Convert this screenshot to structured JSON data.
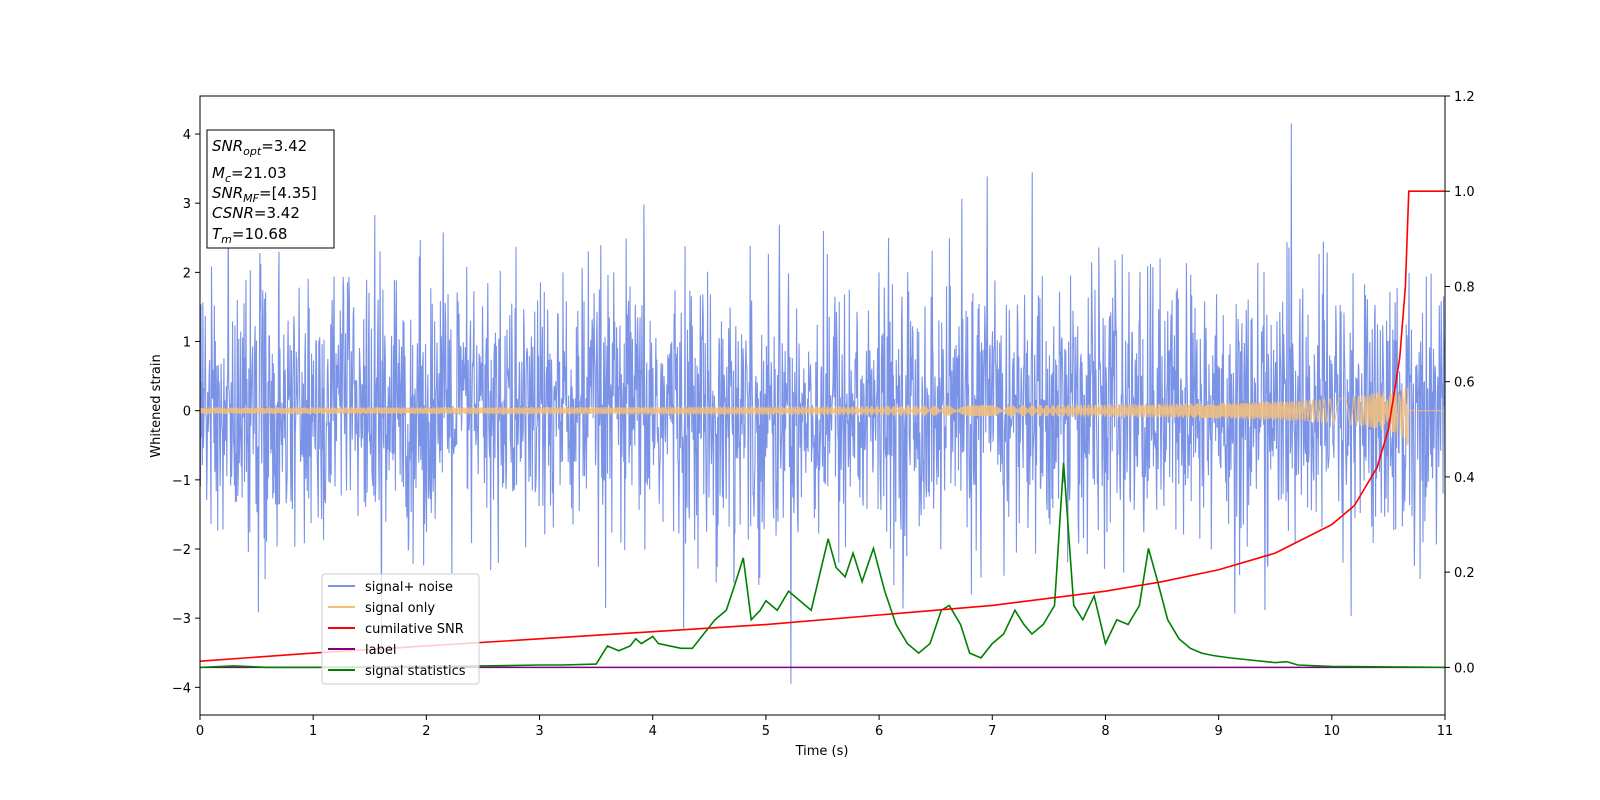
{
  "chart_data": {
    "type": "line",
    "xlabel": "Time (s)",
    "ylabel": "Whitened strain",
    "xlim": [
      0,
      11
    ],
    "ylim_left": [
      -4.4,
      4.55
    ],
    "ylim_right": [
      -0.1,
      1.2
    ],
    "x_ticks": [
      "0",
      "1",
      "2",
      "3",
      "4",
      "5",
      "6",
      "7",
      "8",
      "9",
      "10",
      "11"
    ],
    "y_ticks_left": [
      "4",
      "3",
      "2",
      "1",
      "0",
      "−1",
      "−2",
      "−3",
      "−4"
    ],
    "y_ticks_right": [
      "1.2",
      "1.0",
      "0.8",
      "0.6",
      "0.4",
      "0.2",
      "0.0"
    ],
    "grid": false,
    "legend_position": "lower-left",
    "info_box": {
      "snr_opt": {
        "label": "SNR",
        "sub": "opt",
        "value": "=3.42"
      },
      "mc": {
        "label": "M",
        "sub": "c",
        "value": "=21.03"
      },
      "snr_mf": {
        "label": "SNR",
        "sub": "MF",
        "value": "=[4.35]"
      },
      "csnr": {
        "label": "CSNR",
        "value": "=3.42"
      },
      "tm": {
        "label": "T",
        "sub": "m",
        "value": "=10.68"
      }
    },
    "series": [
      {
        "name": "signal+ noise",
        "color": "#7b93e6",
        "axis": "left",
        "description_values": {
          "std": 1.0,
          "max": 4.15,
          "min": -3.95
        }
      },
      {
        "name": "signal only",
        "color": "#f5c07a",
        "axis": "left",
        "chirp_merger_time": 10.68,
        "peak_amplitude": 0.6
      },
      {
        "name": "cumilative SNR",
        "color": "#ff0000",
        "axis": "right",
        "x": [
          0,
          1,
          2,
          3,
          4,
          5,
          6,
          7,
          7.5,
          8,
          8.5,
          9,
          9.5,
          10,
          10.2,
          10.4,
          10.5,
          10.6,
          10.65,
          10.68,
          11
        ],
        "values": [
          0.013,
          0.03,
          0.045,
          0.06,
          0.075,
          0.09,
          0.11,
          0.13,
          0.145,
          0.16,
          0.18,
          0.205,
          0.24,
          0.3,
          0.34,
          0.42,
          0.5,
          0.65,
          0.8,
          1.0,
          1.0
        ]
      },
      {
        "name": "label",
        "color": "#800080",
        "axis": "right",
        "x": [
          0,
          11
        ],
        "values": [
          0.0,
          0.0
        ]
      },
      {
        "name": "signal statistics",
        "color": "#008000",
        "axis": "right",
        "x": [
          0,
          0.3,
          0.6,
          1.0,
          1.5,
          2.0,
          2.5,
          3.0,
          3.2,
          3.5,
          3.6,
          3.7,
          3.8,
          3.85,
          3.9,
          4.0,
          4.05,
          4.15,
          4.25,
          4.35,
          4.45,
          4.55,
          4.65,
          4.72,
          4.8,
          4.87,
          4.95,
          5.0,
          5.1,
          5.2,
          5.3,
          5.4,
          5.55,
          5.62,
          5.7,
          5.77,
          5.85,
          5.95,
          6.05,
          6.15,
          6.25,
          6.35,
          6.45,
          6.55,
          6.62,
          6.72,
          6.8,
          6.9,
          7.0,
          7.1,
          7.2,
          7.28,
          7.35,
          7.45,
          7.55,
          7.63,
          7.72,
          7.8,
          7.9,
          8.0,
          8.1,
          8.2,
          8.3,
          8.38,
          8.45,
          8.55,
          8.65,
          8.75,
          8.85,
          8.95,
          9.1,
          9.3,
          9.5,
          9.6,
          9.7,
          10.0,
          10.5,
          11.0
        ],
        "values": [
          0.0,
          0.003,
          0.0,
          0.0,
          0.001,
          0.002,
          0.003,
          0.005,
          0.005,
          0.007,
          0.045,
          0.035,
          0.045,
          0.06,
          0.05,
          0.065,
          0.05,
          0.045,
          0.04,
          0.04,
          0.07,
          0.1,
          0.12,
          0.17,
          0.23,
          0.1,
          0.12,
          0.14,
          0.12,
          0.16,
          0.14,
          0.12,
          0.27,
          0.21,
          0.19,
          0.24,
          0.18,
          0.25,
          0.16,
          0.09,
          0.05,
          0.03,
          0.05,
          0.12,
          0.13,
          0.09,
          0.03,
          0.02,
          0.05,
          0.07,
          0.12,
          0.09,
          0.07,
          0.09,
          0.13,
          0.43,
          0.13,
          0.1,
          0.15,
          0.05,
          0.1,
          0.09,
          0.13,
          0.25,
          0.19,
          0.1,
          0.06,
          0.04,
          0.03,
          0.025,
          0.02,
          0.015,
          0.01,
          0.012,
          0.005,
          0.002,
          0.001,
          0.0
        ]
      }
    ]
  }
}
